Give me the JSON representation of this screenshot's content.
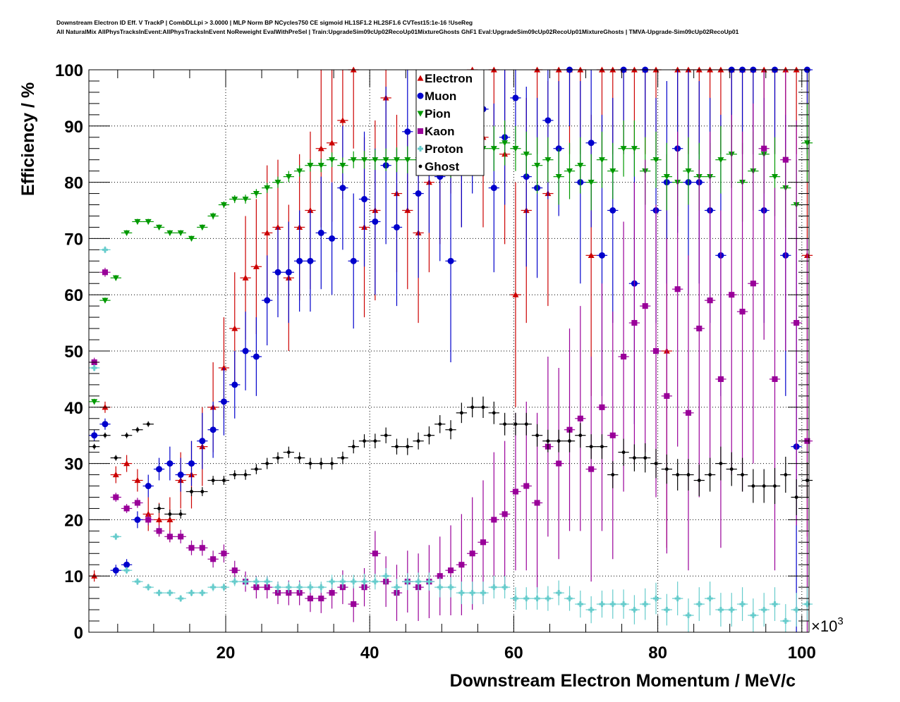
{
  "header": {
    "line1": "Downstream Electron ID Eff. V TrackP | CombDLLpi > 3.0000 | MLP Norm BP NCycles750 CE sigmoid HL1SF1.2 HL2SF1.6 CVTest15:1e-16 !UseReg",
    "line2": "All NaturalMix AllPhysTracksInEvent:AllPhysTracksInEvent NoReweight EvalWithPreSel | Train:UpgradeSim09cUp02RecoUp01MixtureGhosts GhF1 Eval:UpgradeSim09cUp02RecoUp01MixtureGhosts | TMVA-Upgrade-Sim09cUp02RecoUp01"
  },
  "chart_data": {
    "type": "scatter",
    "title": "Downstream Electron ID Eff. V TrackP",
    "xlabel": "Downstream Electron Momentum / MeV/c",
    "ylabel": "Efficiency / %",
    "x_multiplier": "×10",
    "x_multiplier_exp": "3",
    "xlim": [
      1,
      101
    ],
    "ylim": [
      0,
      100
    ],
    "xticks": [
      20,
      40,
      60,
      80,
      100
    ],
    "xtick_labels": [
      "20",
      "40",
      "60",
      "80",
      "100"
    ],
    "yticks": [
      0,
      10,
      20,
      30,
      40,
      50,
      60,
      70,
      80,
      90,
      100
    ],
    "ytick_labels": [
      "0",
      "10",
      "20",
      "30",
      "40",
      "50",
      "60",
      "70",
      "80",
      "90",
      "100"
    ],
    "grid": true,
    "legend_position": "top-center",
    "bin_width": 1.5,
    "x": [
      1.75,
      3.25,
      4.75,
      6.25,
      7.75,
      9.25,
      10.75,
      12.25,
      13.75,
      15.25,
      16.75,
      18.25,
      19.75,
      21.25,
      22.75,
      24.25,
      25.75,
      27.25,
      28.75,
      30.25,
      31.75,
      33.25,
      34.75,
      36.25,
      37.75,
      39.25,
      40.75,
      42.25,
      43.75,
      45.25,
      46.75,
      48.25,
      49.75,
      51.25,
      52.75,
      54.25,
      55.75,
      57.25,
      58.75,
      60.25,
      61.75,
      63.25,
      64.75,
      66.25,
      67.75,
      69.25,
      70.75,
      72.25,
      73.75,
      75.25,
      76.75,
      78.25,
      79.75,
      81.25,
      82.75,
      84.25,
      85.75,
      87.25,
      88.75,
      90.25,
      91.75,
      93.25,
      94.75,
      96.25,
      97.75,
      99.25,
      100.75
    ],
    "series": [
      {
        "name": "Electron",
        "color": "#cc0000",
        "marker": "triangle-up",
        "values": [
          10,
          40,
          28,
          30,
          27,
          21,
          20,
          20,
          27,
          28,
          33,
          40,
          47,
          54,
          63,
          65,
          71,
          72,
          63,
          72,
          75,
          86,
          87,
          91,
          100,
          72,
          75,
          95,
          78,
          75,
          71,
          80,
          85,
          92,
          88,
          100,
          88,
          100,
          85,
          60,
          75,
          100,
          78,
          100,
          100,
          100,
          67,
          100,
          100,
          100,
          100,
          100,
          100,
          50,
          100,
          100,
          100,
          100,
          100,
          100,
          100,
          100,
          100,
          100,
          100,
          100,
          67
        ],
        "errors": [
          1,
          1,
          1.5,
          1.5,
          2,
          3,
          3,
          4,
          5,
          6,
          7,
          8,
          9,
          10,
          11,
          12,
          12,
          12,
          13,
          13,
          14,
          14,
          14,
          14,
          14,
          16,
          16,
          12,
          14,
          14,
          16,
          16,
          16,
          14,
          16,
          15,
          16,
          14,
          16,
          20,
          20,
          15,
          20,
          15,
          15,
          15,
          25,
          15,
          15,
          15,
          15,
          15,
          15,
          35,
          15,
          15,
          15,
          15,
          15,
          15,
          15,
          15,
          15,
          15,
          15,
          15,
          50
        ]
      },
      {
        "name": "Muon",
        "color": "#0000cc",
        "marker": "circle",
        "values": [
          35,
          37,
          11,
          12,
          20,
          26,
          29,
          30,
          28,
          30,
          34,
          36,
          41,
          44,
          50,
          49,
          59,
          64,
          64,
          66,
          66,
          71,
          70,
          79,
          66,
          77,
          73,
          83,
          72,
          89,
          78,
          86,
          81,
          66,
          86,
          90,
          93,
          79,
          88,
          95,
          81,
          79,
          91,
          86,
          100,
          80,
          87,
          67,
          75,
          100,
          62,
          100,
          75,
          80,
          86,
          80,
          80,
          75,
          67,
          100,
          100,
          100,
          75,
          100,
          67,
          33,
          100
        ],
        "errors": [
          1,
          1,
          1,
          1,
          1.5,
          2,
          2,
          3,
          3,
          4,
          5,
          5,
          6,
          6,
          7,
          7,
          8,
          8,
          9,
          9,
          9,
          10,
          10,
          11,
          12,
          12,
          13,
          14,
          14,
          14,
          15,
          15,
          15,
          18,
          14,
          12,
          10,
          15,
          12,
          8,
          16,
          16,
          14,
          12,
          10,
          18,
          15,
          25,
          20,
          15,
          25,
          12,
          20,
          18,
          15,
          20,
          18,
          20,
          25,
          15,
          15,
          15,
          20,
          15,
          25,
          40,
          15
        ]
      },
      {
        "name": "Pion",
        "color": "#009900",
        "marker": "triangle-down",
        "values": [
          41,
          59,
          63,
          71,
          73,
          73,
          72,
          71,
          71,
          70,
          72,
          74,
          76,
          77,
          77,
          78,
          79,
          80,
          81,
          82,
          83,
          83,
          84,
          83,
          84,
          84,
          84,
          84,
          84,
          84,
          84,
          85,
          85,
          84,
          85,
          86,
          86,
          86,
          87,
          86,
          85,
          83,
          84,
          81,
          82,
          83,
          80,
          84,
          82,
          86,
          86,
          82,
          84,
          81,
          80,
          82,
          81,
          81,
          84,
          85,
          80,
          82,
          85,
          81,
          79,
          76,
          87
        ],
        "errors": [
          0.5,
          0.5,
          0.5,
          0.5,
          0.5,
          0.5,
          0.5,
          0.5,
          0.5,
          0.5,
          0.5,
          0.6,
          0.6,
          0.7,
          0.8,
          0.8,
          0.9,
          1,
          1,
          1,
          1.1,
          1.2,
          1.3,
          1.4,
          1.5,
          1.6,
          1.8,
          2,
          2.2,
          2.4,
          2.6,
          3,
          3,
          3.2,
          3.4,
          3.6,
          4,
          4,
          4,
          4,
          4,
          5,
          4,
          5,
          5,
          5,
          5,
          5,
          5,
          5,
          5,
          6,
          5,
          6,
          6,
          6,
          6,
          6,
          6,
          6,
          7,
          7,
          7,
          7,
          7,
          8,
          7
        ]
      },
      {
        "name": "Kaon",
        "color": "#990099",
        "marker": "square",
        "values": [
          48,
          64,
          24,
          22,
          23,
          20,
          18,
          17,
          17,
          15,
          15,
          13,
          14,
          11,
          9,
          8,
          8,
          7,
          7,
          7,
          6,
          6,
          7,
          8,
          5,
          8,
          14,
          9,
          7,
          9,
          8,
          9,
          10,
          11,
          12,
          14,
          16,
          20,
          21,
          25,
          26,
          23,
          33,
          30,
          36,
          38,
          29,
          40,
          35,
          49,
          55,
          58,
          50,
          42,
          61,
          39,
          54,
          59,
          45,
          60,
          57,
          62,
          86,
          45,
          84,
          55,
          34
        ],
        "errors": [
          0.8,
          0.8,
          0.8,
          0.8,
          0.9,
          1,
          1,
          1,
          1.2,
          1.3,
          1.4,
          1.5,
          1.6,
          1.7,
          1.8,
          2,
          2,
          2,
          2.2,
          2.2,
          2.4,
          2.6,
          2.8,
          3,
          3.2,
          3.4,
          4,
          4.5,
          5,
          5.5,
          6,
          6.5,
          7,
          8,
          9,
          10,
          11,
          12,
          13,
          14,
          15,
          16,
          16,
          17,
          18,
          20,
          20,
          22,
          22,
          24,
          25,
          26,
          26,
          28,
          28,
          28,
          30,
          30,
          30,
          32,
          32,
          32,
          34,
          34,
          34,
          36,
          36
        ]
      },
      {
        "name": "Proton",
        "color": "#66cccc",
        "marker": "cross",
        "values": [
          47,
          68,
          17,
          11,
          9,
          8,
          7,
          7,
          6,
          7,
          7,
          8,
          8,
          9,
          9,
          9,
          9,
          8,
          8,
          8,
          8,
          8,
          9,
          9,
          9,
          9,
          9,
          10,
          8,
          9,
          9,
          9,
          8,
          8,
          7,
          7,
          7,
          8,
          8,
          6,
          6,
          6,
          6,
          7,
          6,
          5,
          4,
          5,
          5,
          5,
          4,
          5,
          6,
          4,
          6,
          3,
          5,
          6,
          4,
          4,
          5,
          3,
          4,
          5,
          2,
          4,
          5
        ],
        "errors": [
          0.6,
          0.6,
          0.6,
          0.6,
          0.6,
          0.6,
          0.6,
          0.6,
          0.6,
          0.6,
          0.6,
          0.7,
          0.7,
          0.8,
          0.8,
          0.9,
          1,
          1,
          1,
          1,
          1,
          1,
          1.2,
          1.2,
          1.2,
          1.4,
          1.4,
          1.4,
          1.5,
          1.5,
          1.6,
          1.6,
          1.8,
          1.8,
          2,
          2,
          2,
          2,
          2,
          2,
          2,
          2,
          2.2,
          2.2,
          2.2,
          2.4,
          2.4,
          2.4,
          2.6,
          2.6,
          2.6,
          2.8,
          2.8,
          2.8,
          3,
          3,
          3,
          3,
          3,
          3,
          3,
          3,
          3,
          3,
          3,
          3,
          3
        ]
      },
      {
        "name": "Ghost",
        "color": "#000000",
        "marker": "diamond",
        "values": [
          33,
          35,
          31,
          35,
          36,
          37,
          22,
          21,
          21,
          25,
          25,
          27,
          27,
          28,
          28,
          29,
          30,
          31,
          32,
          31,
          30,
          30,
          30,
          31,
          33,
          34,
          34,
          35,
          33,
          33,
          34,
          35,
          37,
          36,
          39,
          40,
          40,
          39,
          37,
          37,
          37,
          35,
          34,
          34,
          34,
          35,
          33,
          33,
          28,
          32,
          31,
          31,
          30,
          29,
          28,
          28,
          27,
          28,
          30,
          29,
          28,
          26,
          26,
          26,
          28,
          24,
          27
        ],
        "errors": [
          0.5,
          0.5,
          0.5,
          0.5,
          0.5,
          0.5,
          0.8,
          0.8,
          0.8,
          0.8,
          0.8,
          0.8,
          0.8,
          0.8,
          0.9,
          0.9,
          1,
          1,
          1,
          1,
          1,
          1,
          1.1,
          1.1,
          1.2,
          1.2,
          1.3,
          1.4,
          1.4,
          1.5,
          1.5,
          1.6,
          1.6,
          1.7,
          1.8,
          1.8,
          1.9,
          2,
          2,
          2,
          2,
          2,
          2,
          2,
          2,
          2.2,
          2.2,
          2.2,
          2.4,
          2.4,
          2.4,
          2.6,
          2.6,
          2.6,
          2.8,
          2.8,
          2.8,
          3,
          3,
          3,
          3,
          3,
          3,
          3.2,
          3.2,
          3.2,
          3.2
        ]
      }
    ]
  }
}
